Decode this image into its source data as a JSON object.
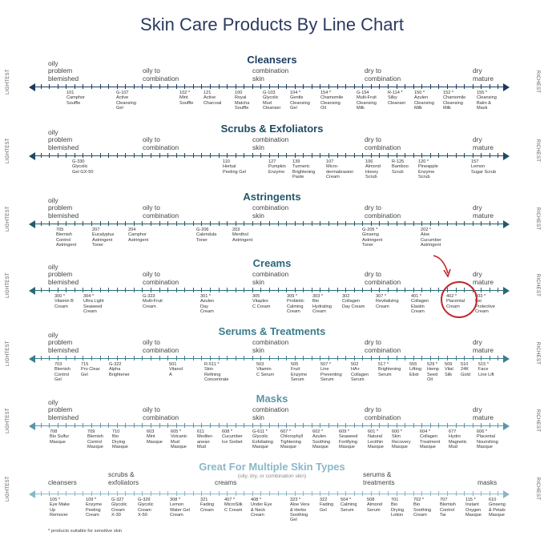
{
  "title": "Skin Care Products By Line Chart",
  "side_labels": {
    "left": "LIGHTEST",
    "right": "RICHEST"
  },
  "footnote": "* products suitable for sensitive skin",
  "sections": [
    {
      "title": "Cleansers",
      "color": "#1c3b5f",
      "labels": [
        "oily\nproblem\nblemished",
        "oily to\ncombination",
        "combination\nskin",
        "dry to\ncombination",
        "dry\nmature"
      ],
      "products": [
        {
          "text": "101\nCamphor\nSouffle"
        },
        {
          "text": "G-107\nActive\nCleansing\nGel"
        },
        {
          "text": "102 *\nMint\nSouffle"
        },
        {
          "text": "121\nActive\nCharcoal"
        },
        {
          "text": "100\nRoyal\nMatcha\nSouffle"
        },
        {
          "text": "G-103\nGlycolic\nMud\nCleanser"
        },
        {
          "text": "104 *\nGentle\nCleansing\nGel"
        },
        {
          "text": "154 *\nChamomile\nCleansing\nOil"
        },
        {
          "text": "G-154\nMulti-Fruit\nCleansing\nMilk"
        },
        {
          "text": "R-114 *\nSilky\nCleanser"
        },
        {
          "text": "150 *\nAzulen\nCleansing\nMilk"
        },
        {
          "text": "152 *\nChamomile\nCleansing\nMilk"
        },
        {
          "text": "155 *\nCleansing\nBalm &\nMask"
        }
      ]
    },
    {
      "title": "Scrubs & Exfoliators",
      "color": "#1d4c63",
      "labels": [
        "oily\nproblem\nblemished",
        "oily to\ncombination",
        "combination\nskin",
        "dry to\ncombination",
        "dry\nmature"
      ],
      "products": [
        {
          "text": "G-330\nGlycolic\nGel GX-50"
        },
        {
          "text": "110\nHerbal\nPeeling Gel"
        },
        {
          "text": "127\nPumpkin\nEnzyme"
        },
        {
          "text": "139\nTurmeric\nBrightening\nPaste"
        },
        {
          "text": "107\nMicro-\ndermabrasion\nCream"
        },
        {
          "text": "106\nAlmond\nHoney\nScrub"
        },
        {
          "text": "R-125\nBamboo\nScrub"
        },
        {
          "text": "120 *\nPineapple\nEnzyme\nScrub"
        },
        {
          "text": "157\nLemon\nSugar Scrub"
        }
      ]
    },
    {
      "title": "Astringents",
      "color": "#235a6b",
      "labels": [
        "oily\nproblem\nblemished",
        "oily to\ncombination",
        "combination\nskin",
        "dry to\ncombination",
        "dry\nmature"
      ],
      "products": [
        {
          "text": "705\nBlemish\nControl\nAstringent"
        },
        {
          "text": "207\nEucalyptus\nAstringent\nToner"
        },
        {
          "text": "204\nCamphor\nAstringent"
        },
        {
          "text": "G-206\nCalendula\nToner"
        },
        {
          "text": "203\nMenthol\nAstringent"
        },
        {
          "text": "G-205 *\nGinseng\nAstringent\nToner"
        },
        {
          "text": "202 *\nAloe\nCucumber\nAstringent"
        }
      ]
    },
    {
      "title": "Creams",
      "color": "#2a6877",
      "labels": [
        "oily\nproblem\nblemished",
        "oily to\ncombination",
        "combination\nskin",
        "dry to\ncombination",
        "dry\nmature"
      ],
      "products": [
        {
          "text": "300 *\nVitamin B\nCream"
        },
        {
          "text": "304 *\nUltra Light\nSeaweed\nCream"
        },
        {
          "text": "G-323\nMulti-Fruit\nCream"
        },
        {
          "text": "301 *\nAzulen\nDay\nCream"
        },
        {
          "text": "305\nVitaplex\nC Cream"
        },
        {
          "text": "309 *\nProbiotic\nCalming\nCream"
        },
        {
          "text": "303 *\nBio\nHydrating\nCream"
        },
        {
          "text": "302\nCollagen\nDay Cream"
        },
        {
          "text": "307 *\nRevitalizing\nCream"
        },
        {
          "text": "401 *\nCollagen\nElastin\nCream"
        },
        {
          "text": "402 *\nPlacental\nCream"
        },
        {
          "text": "403 *\nBio\nProtective\nCream"
        }
      ]
    },
    {
      "title": "Serums & Treatments",
      "color": "#3b7d8e",
      "labels": [
        "oily\nproblem\nblemished",
        "oily to\ncombination",
        "combination\nskin",
        "dry to\ncombination",
        "dry\nmature"
      ],
      "products": [
        {
          "text": "703\nBlemish\nControl\nGel"
        },
        {
          "text": "715\nPro Clear\nGel"
        },
        {
          "text": "G-322\nAlpha\nBrightener"
        },
        {
          "text": "501\nVitanol\nA"
        },
        {
          "text": "R-511 *\nSkin\nRefining\nConcentrate"
        },
        {
          "text": "503\nVitamin\nC Serum"
        },
        {
          "text": "505\nFruit\nEnzyme\nSerum"
        },
        {
          "text": "507 *\nLine\nPreventing\nSerum"
        },
        {
          "text": "502\nHA+\nCollagen\nSerum"
        },
        {
          "text": "517 *\nBrightening\nSerum"
        },
        {
          "text": "555\nLifting\nElixir"
        },
        {
          "text": "529 *\nHemp\nSeed\nOil"
        },
        {
          "text": "509\nVital\nSilk"
        },
        {
          "text": "510\n24K\nGold"
        },
        {
          "text": "515 *\nFace\nLine Lift"
        }
      ]
    },
    {
      "title": "Masks",
      "color": "#5a96ab",
      "labels": [
        "oily\nproblem\nblemished",
        "oily to\ncombination",
        "combination\nskin",
        "dry to\ncombination",
        "dry\nmature"
      ],
      "products": [
        {
          "text": "708\nBio Sulfur\nMasque"
        },
        {
          "text": "709\nBlemish\nControl\nMasque"
        },
        {
          "text": "710\nBio\nDrying\nMasque"
        },
        {
          "text": "603\nMint\nMasque"
        },
        {
          "text": "605 *\nVolcanic\nMud\nMasque"
        },
        {
          "text": "611\nMediter-\nanean\nMud"
        },
        {
          "text": "608 *\nCucumber\nIce Sorbet"
        },
        {
          "text": "G-611 *\nGlycolic\nExfoliating\nMasque"
        },
        {
          "text": "607 *\nChlorophyll\nTightening\nMasque"
        },
        {
          "text": "602 *\nAzulen\nSoothing\nMasque"
        },
        {
          "text": "609 *\nSeaweed\nFortifying\nMasque"
        },
        {
          "text": "601 *\nNatural\nLecithin\nMasque"
        },
        {
          "text": "600 *\nSkin\nRecovery\nMasque"
        },
        {
          "text": "604 *\nCollagen\nTreatment\nMasque"
        },
        {
          "text": "677\nHydro\nMagnetic\nMud"
        },
        {
          "text": "606 *\nPlacental\nNourishing\nMasque"
        }
      ]
    },
    {
      "title": "Great For Multiple Skin Types",
      "subtitle": "(oily, dry, or combination skin)",
      "color": "#8ab8c8",
      "labels": [
        "cleansers",
        "scrubs &\nexfoliators",
        "creams",
        "serums &\ntreatments",
        "masks"
      ],
      "products": [
        {
          "text": "105 *\nEye Make\nUp\nRemover"
        },
        {
          "text": "109 *\nEnzyme\nPeeling\nCream"
        },
        {
          "text": "G-327\nGlycolic\nCream\nX-30"
        },
        {
          "text": "G-329\nGlycolic\nCream\nX-50"
        },
        {
          "text": "308 *\nLemon\nWater Gel\nCream"
        },
        {
          "text": "321\nFading\nCream"
        },
        {
          "text": "407 *\nMicroSilk\nC Cream"
        },
        {
          "text": "408 *\nUnder Eye\n& Neck\nCream"
        },
        {
          "text": "323 *\nAloe Vera\n& Herbs\nSoothing\nGel"
        },
        {
          "text": "322\nFading\nGel"
        },
        {
          "text": "504 *\nCalming\nSerum"
        },
        {
          "text": "508\nAlmond\nSerum"
        },
        {
          "text": "701\nBio\nDrying\nLotion"
        },
        {
          "text": "702 *\nBio\nSoothing\nCream"
        },
        {
          "text": "707\nBlemish\nControl\nTar"
        },
        {
          "text": "115 *\nInstant\nOxygen\nMasque"
        },
        {
          "text": "610\nGinseng\n& Petals\nMasque"
        }
      ]
    }
  ]
}
